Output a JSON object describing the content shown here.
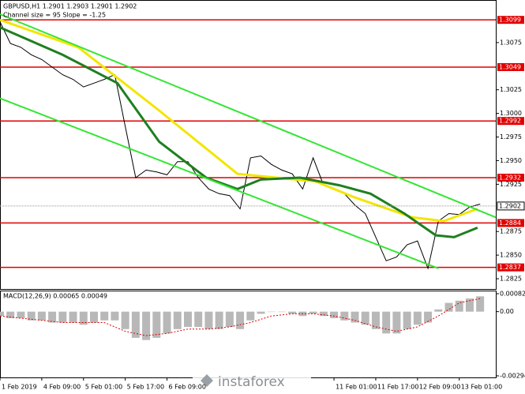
{
  "watermark": "instaforex",
  "chart_data": [
    {
      "type": "line",
      "title": "GBPUSD,H1  1.2901 1.2903 1.2901 1.2902",
      "subtitle": "Channel size = 95 Slope = -1.25",
      "xlim": [
        0,
        190
      ],
      "ylim": [
        1.2815,
        1.311
      ],
      "yticks": [
        1.3075,
        1.3025,
        {
          "value": 1.3,
          "label": "1.3000"
        },
        1.2975,
        {
          "value": 1.295,
          "label": "1.2950"
        },
        1.2925,
        1.2875,
        {
          "value": 1.285,
          "label": "1.2850"
        },
        1.2825
      ],
      "xticks": [
        {
          "value": 0,
          "label": "1 Feb 2019"
        },
        {
          "value": 16,
          "label": "4 Feb 09:00"
        },
        {
          "value": 32,
          "label": "5 Feb 01:00"
        },
        {
          "value": 48,
          "label": "5 Feb 17:00"
        },
        {
          "value": 64,
          "label": "6 Feb 09:00"
        },
        {
          "value": 128,
          "label": "11 Feb 01:00"
        },
        {
          "value": 144,
          "label": "11 Feb 17:00"
        },
        {
          "value": 160,
          "label": "12 Feb 09:00"
        },
        {
          "value": 176,
          "label": "13 Feb 01:00"
        }
      ],
      "levels": [
        1.3099,
        1.3049,
        1.2992,
        1.2932,
        1.2884,
        1.2837
      ],
      "level_color": "#e00000",
      "last_price": 1.2902,
      "series": [
        {
          "color": "#000000",
          "width": 1,
          "x": [
            0,
            4,
            8,
            12,
            16,
            20,
            24,
            28,
            32,
            36,
            40,
            44,
            48,
            52,
            56,
            60,
            64,
            68,
            72,
            76,
            80,
            84,
            88,
            92,
            96,
            100,
            104,
            108,
            112,
            116,
            120,
            124,
            128,
            132,
            136,
            140,
            144,
            148,
            152,
            156,
            160,
            164,
            168,
            172,
            176,
            180,
            184
          ],
          "values": [
            1.3097,
            1.3074,
            1.307,
            1.3062,
            1.3057,
            1.3049,
            1.3041,
            1.3036,
            1.3028,
            1.3032,
            1.3036,
            1.3041,
            1.2986,
            1.2932,
            1.294,
            1.2938,
            1.2935,
            1.2949,
            1.2949,
            1.2932,
            1.292,
            1.2915,
            1.2913,
            1.2899,
            1.2953,
            1.2955,
            1.2946,
            1.294,
            1.2936,
            1.292,
            1.2953,
            1.2924,
            1.292,
            1.2915,
            1.2903,
            1.2894,
            1.2869,
            1.2844,
            1.2848,
            1.2861,
            1.2865,
            1.2836,
            1.2886,
            1.2894,
            1.2893,
            1.2901,
            1.2904
          ]
        },
        {
          "color": "#f2e600",
          "width": 3,
          "x": [
            0,
            30,
            61,
            91,
            121,
            136,
            158,
            170,
            183
          ],
          "values": [
            1.3099,
            1.307,
            1.3003,
            1.2936,
            1.2928,
            1.2911,
            1.289,
            1.2886,
            1.2899
          ]
        },
        {
          "color": "#1f7f1f",
          "width": 3,
          "x": [
            0,
            24,
            45,
            61,
            79,
            91,
            100,
            115,
            130,
            142,
            155,
            167,
            174,
            183
          ],
          "values": [
            1.3091,
            1.3062,
            1.3032,
            1.297,
            1.2932,
            1.292,
            1.293,
            1.2932,
            1.2924,
            1.2915,
            1.2894,
            1.2871,
            1.2869,
            1.2879
          ]
        },
        {
          "color": "#33e633",
          "width": 2,
          "x": [
            0,
            190
          ],
          "values": [
            1.3105,
            1.289
          ]
        },
        {
          "color": "#33e633",
          "width": 2,
          "x": [
            0,
            168
          ],
          "values": [
            1.3016,
            1.2836
          ]
        }
      ]
    },
    {
      "type": "bar",
      "title": "MACD(12,26,9) 0.00065 0.00049",
      "xlim": [
        0,
        190
      ],
      "ylim": [
        -0.00294,
        0.00082
      ],
      "yticks": [
        0.00082,
        {
          "value": 0,
          "label": "0.00"
        },
        -0.00294
      ],
      "color": "#b8b8b8",
      "x": [
        0,
        4,
        8,
        12,
        16,
        20,
        24,
        28,
        32,
        36,
        40,
        44,
        48,
        52,
        56,
        60,
        64,
        68,
        72,
        76,
        80,
        84,
        88,
        92,
        96,
        100,
        104,
        108,
        112,
        116,
        120,
        124,
        128,
        132,
        136,
        140,
        144,
        148,
        152,
        156,
        160,
        164,
        168,
        172,
        176,
        180,
        184
      ],
      "values": [
        -0.0002,
        -0.0003,
        -0.0003,
        -0.0004,
        -0.0004,
        -0.0005,
        -0.0005,
        -0.0005,
        -0.0006,
        -0.0005,
        -0.0004,
        -0.0004,
        -0.0008,
        -0.0012,
        -0.0013,
        -0.0012,
        -0.001,
        -0.0008,
        -0.0007,
        -0.0007,
        -0.0008,
        -0.0008,
        -0.0007,
        -0.0008,
        -0.0004,
        -0.0001,
        0,
        0,
        -0.0001,
        -0.0002,
        -0.0001,
        -0.0002,
        -0.0003,
        -0.0004,
        -0.0005,
        -0.0006,
        -0.0008,
        -0.001,
        -0.001,
        -0.0008,
        -0.0006,
        -0.0005,
        0.0001,
        0.0004,
        0.0005,
        0.0006,
        0.0007
      ],
      "signal": {
        "color": "#e00000",
        "x": [
          0,
          8,
          16,
          24,
          32,
          40,
          48,
          56,
          64,
          72,
          80,
          88,
          96,
          104,
          112,
          120,
          128,
          136,
          144,
          152,
          160,
          168,
          176,
          184
        ],
        "values": [
          -0.0002,
          -0.0003,
          -0.0004,
          -0.0005,
          -0.0005,
          -0.0005,
          -0.0009,
          -0.0011,
          -0.001,
          -0.0008,
          -0.0008,
          -0.0007,
          -0.0005,
          -0.0002,
          -0.0001,
          -0.0001,
          -0.0002,
          -0.0004,
          -0.0007,
          -0.0009,
          -0.0007,
          -0.0002,
          0.0004,
          0.0006
        ]
      }
    }
  ]
}
